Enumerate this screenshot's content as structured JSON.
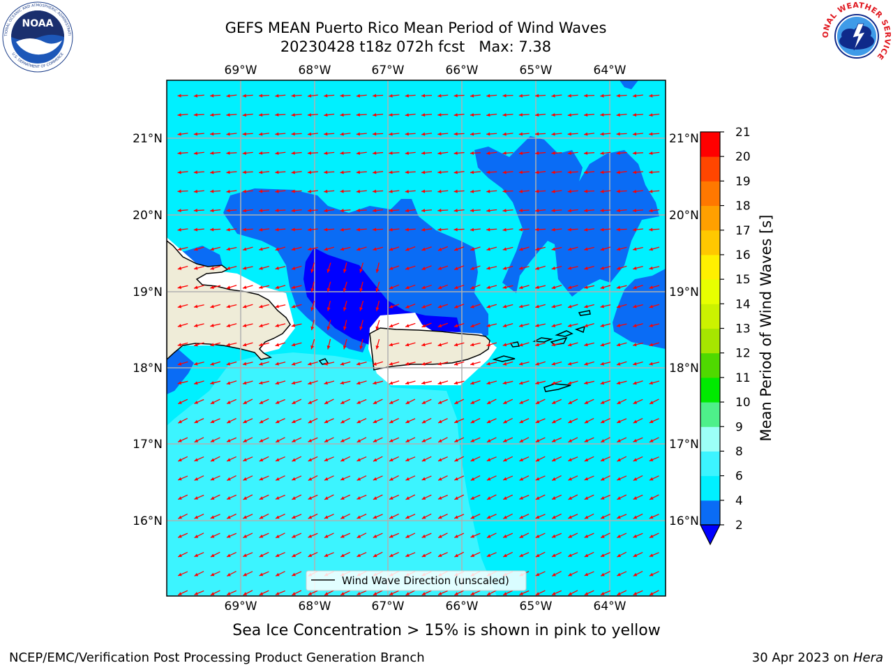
{
  "header": {
    "title_line1": "GEFS MEAN Puerto Rico Mean Period of Wind Waves",
    "title_line2": "20230428 t18z 072h fcst   Max: 7.38"
  },
  "logos": {
    "noaa_text": "NOAA",
    "noaa_ring_text": "NATIONAL OCEANIC AND ATMOSPHERIC ADMINISTRATION",
    "noaa_ring_text_bottom": "U.S. DEPARTMENT OF COMMERCE",
    "nws_ring_text": "NATIONAL WEATHER SERVICE"
  },
  "map": {
    "lon_ticks": [
      "69°W",
      "68°W",
      "67°W",
      "66°W",
      "65°W",
      "64°W"
    ],
    "lat_ticks": [
      "21°N",
      "20°N",
      "19°N",
      "18°N",
      "17°N",
      "16°N"
    ],
    "extent": {
      "lon_min": -70.0,
      "lon_max": -63.25,
      "lat_min": 15.0,
      "lat_max": 21.75
    },
    "legend_label": "Wind Wave Direction (unscaled)",
    "arrow_color": "#ff0000",
    "land_color": "#efecd8"
  },
  "colorbar": {
    "label": "Mean Period of Wind Waves [s]",
    "levels": [
      "2",
      "4",
      "6",
      "8",
      "9",
      "10",
      "11",
      "12",
      "13",
      "14",
      "15",
      "16",
      "17",
      "18",
      "19",
      "20",
      "21"
    ],
    "colors": [
      "#0a6cf5",
      "#00f0ff",
      "#3cf4ff",
      "#9cfff7",
      "#4ef08a",
      "#00ea00",
      "#4fd900",
      "#a6e600",
      "#cbf200",
      "#e7ff00",
      "#fff000",
      "#ffc800",
      "#ffa000",
      "#ff7800",
      "#ff4600",
      "#ff0000"
    ],
    "under_color": "#0000ff"
  },
  "footer": {
    "ice_note": "Sea Ice Concentration > 15% is shown in pink to yellow",
    "branch": "NCEP/EMC/Verification Post Processing Product Generation Branch",
    "date": "30 Apr 2023 on",
    "machine": "Hera"
  }
}
